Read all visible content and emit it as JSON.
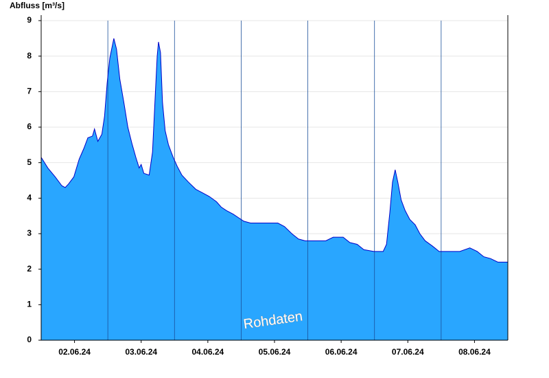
{
  "chart_data": {
    "type": "area",
    "ylabel": "Abfluss [m³/s]",
    "annotation": "Rohdaten",
    "color": "#29a6ff",
    "line_color": "#0000c8",
    "grid": true,
    "x": [
      0,
      0.1,
      0.21,
      0.31,
      0.36,
      0.41,
      0.49,
      0.57,
      0.64,
      0.7,
      0.77,
      0.8,
      0.85,
      0.91,
      0.95,
      0.99,
      1.03,
      1.09,
      1.13,
      1.18,
      1.24,
      1.3,
      1.36,
      1.42,
      1.47,
      1.5,
      1.54,
      1.62,
      1.67,
      1.71,
      1.74,
      1.76,
      1.79,
      1.82,
      1.86,
      1.91,
      1.98,
      2.04,
      2.11,
      2.21,
      2.32,
      2.42,
      2.52,
      2.63,
      2.7,
      2.78,
      2.88,
      2.96,
      3.04,
      3.14,
      3.29,
      3.45,
      3.55,
      3.65,
      3.76,
      3.86,
      3.96,
      4.12,
      4.27,
      4.38,
      4.53,
      4.63,
      4.74,
      4.84,
      4.99,
      5.13,
      5.18,
      5.23,
      5.27,
      5.31,
      5.35,
      5.4,
      5.46,
      5.53,
      5.61,
      5.68,
      5.76,
      5.87,
      5.97,
      6.13,
      6.28,
      6.43,
      6.54,
      6.64,
      6.74,
      6.85,
      6.93,
      7.0
    ],
    "values": [
      5.15,
      4.85,
      4.6,
      4.35,
      4.3,
      4.4,
      4.6,
      5.1,
      5.4,
      5.7,
      5.75,
      5.95,
      5.6,
      5.8,
      6.3,
      7.25,
      7.95,
      8.5,
      8.2,
      7.35,
      6.7,
      6.0,
      5.55,
      5.15,
      4.85,
      4.95,
      4.7,
      4.65,
      5.3,
      6.85,
      8.0,
      8.4,
      8.1,
      6.7,
      5.9,
      5.5,
      5.15,
      4.9,
      4.65,
      4.45,
      4.25,
      4.15,
      4.05,
      3.9,
      3.75,
      3.65,
      3.55,
      3.45,
      3.35,
      3.3,
      3.3,
      3.3,
      3.3,
      3.2,
      3.0,
      2.85,
      2.8,
      2.8,
      2.8,
      2.9,
      2.9,
      2.75,
      2.7,
      2.55,
      2.5,
      2.5,
      2.7,
      3.6,
      4.45,
      4.8,
      4.45,
      3.95,
      3.65,
      3.4,
      3.25,
      3.0,
      2.8,
      2.65,
      2.5,
      2.5,
      2.5,
      2.6,
      2.5,
      2.35,
      2.3,
      2.2,
      2.2,
      2.2
    ],
    "xlim": [
      0,
      7
    ],
    "xticks": [
      {
        "value": 0.5,
        "label": "02.06.24"
      },
      {
        "value": 1.5,
        "label": "03.06.24"
      },
      {
        "value": 2.5,
        "label": "04.06.24"
      },
      {
        "value": 3.5,
        "label": "05.06.24"
      },
      {
        "value": 4.5,
        "label": "06.06.24"
      },
      {
        "value": 5.5,
        "label": "07.06.24"
      },
      {
        "value": 6.5,
        "label": "08.06.24"
      }
    ],
    "ylim": [
      0,
      9
    ],
    "yticks": [
      0,
      1,
      2,
      3,
      4,
      5,
      6,
      7,
      8,
      9
    ]
  }
}
